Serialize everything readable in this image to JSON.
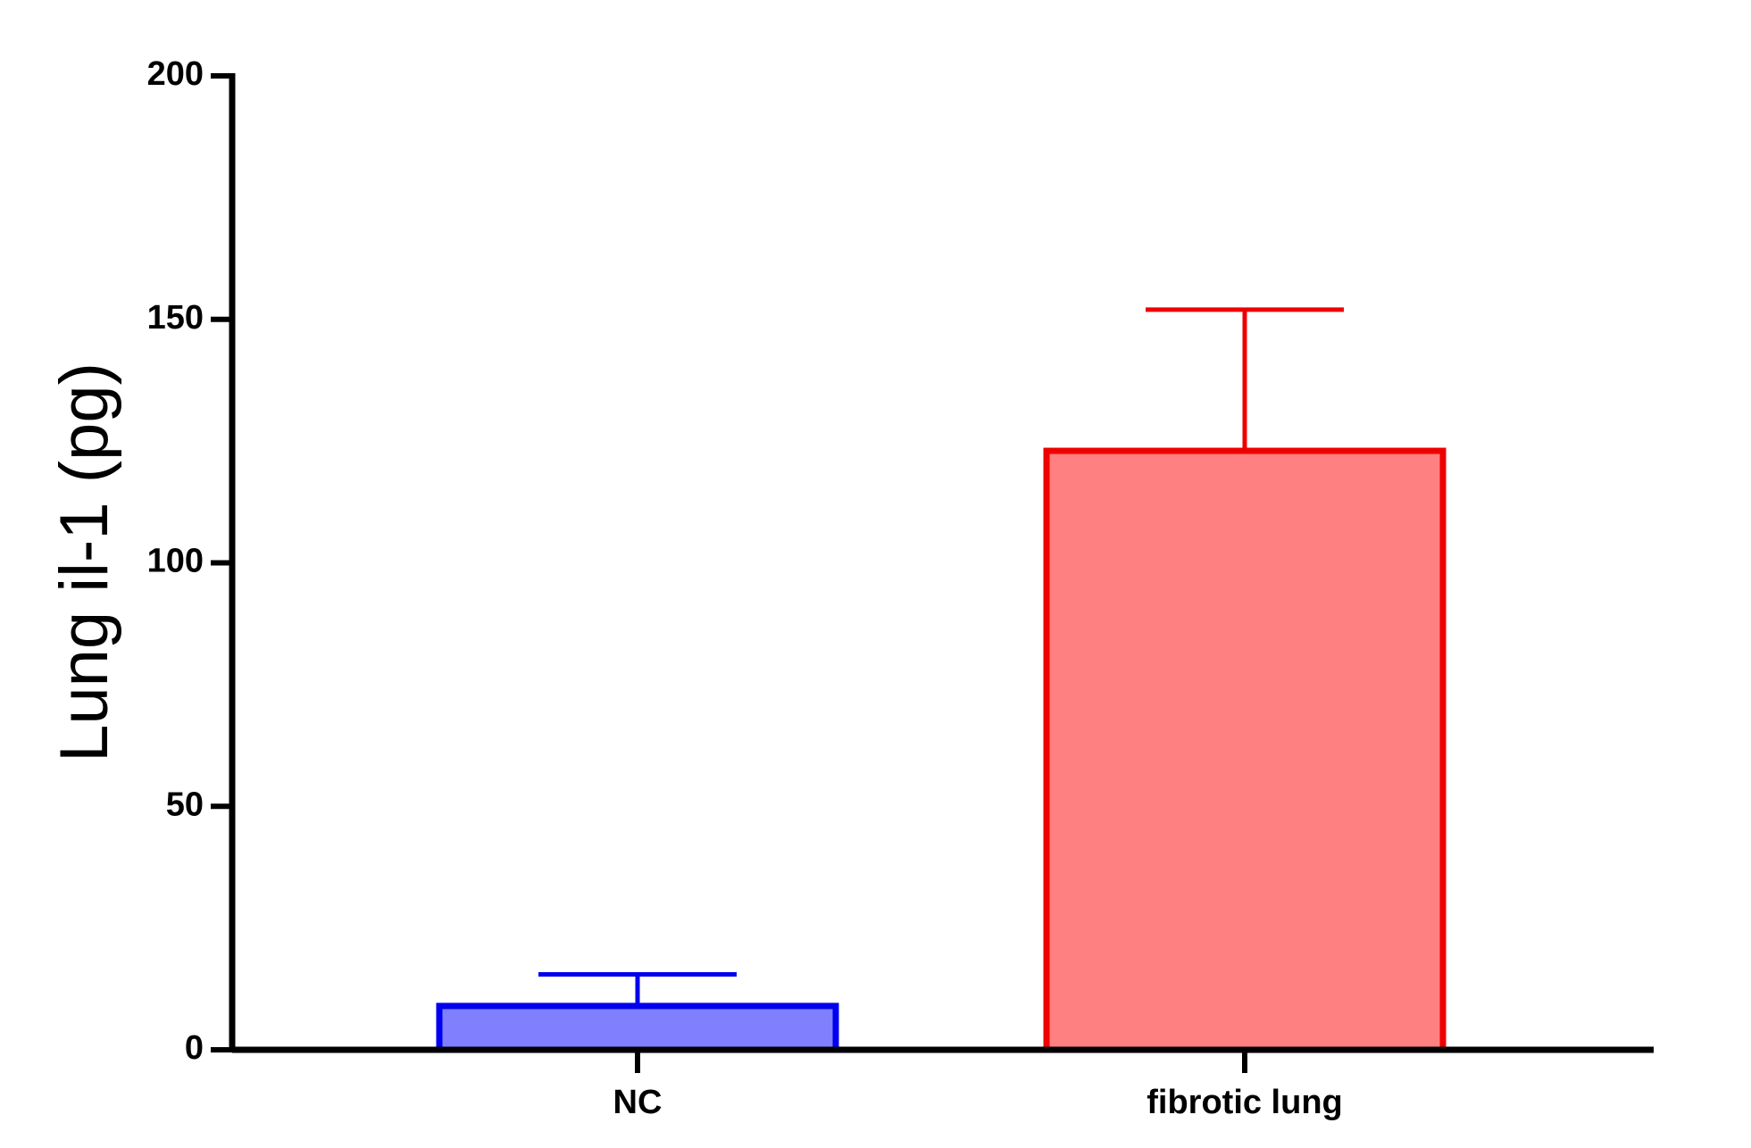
{
  "chart_data": {
    "type": "bar",
    "y_label": "Lung il-1 (pg)",
    "categories": [
      "NC",
      "fibrotic lung"
    ],
    "values": [
      9,
      123
    ],
    "errors": [
      6.5,
      29
    ],
    "fill_colors": [
      "#8080ff",
      "#ff8080"
    ],
    "edge_colors": [
      "#0000ee",
      "#ee0000"
    ],
    "ylim": [
      0,
      200
    ],
    "yticks": [
      0,
      50,
      100,
      150,
      200
    ],
    "grid": false
  }
}
